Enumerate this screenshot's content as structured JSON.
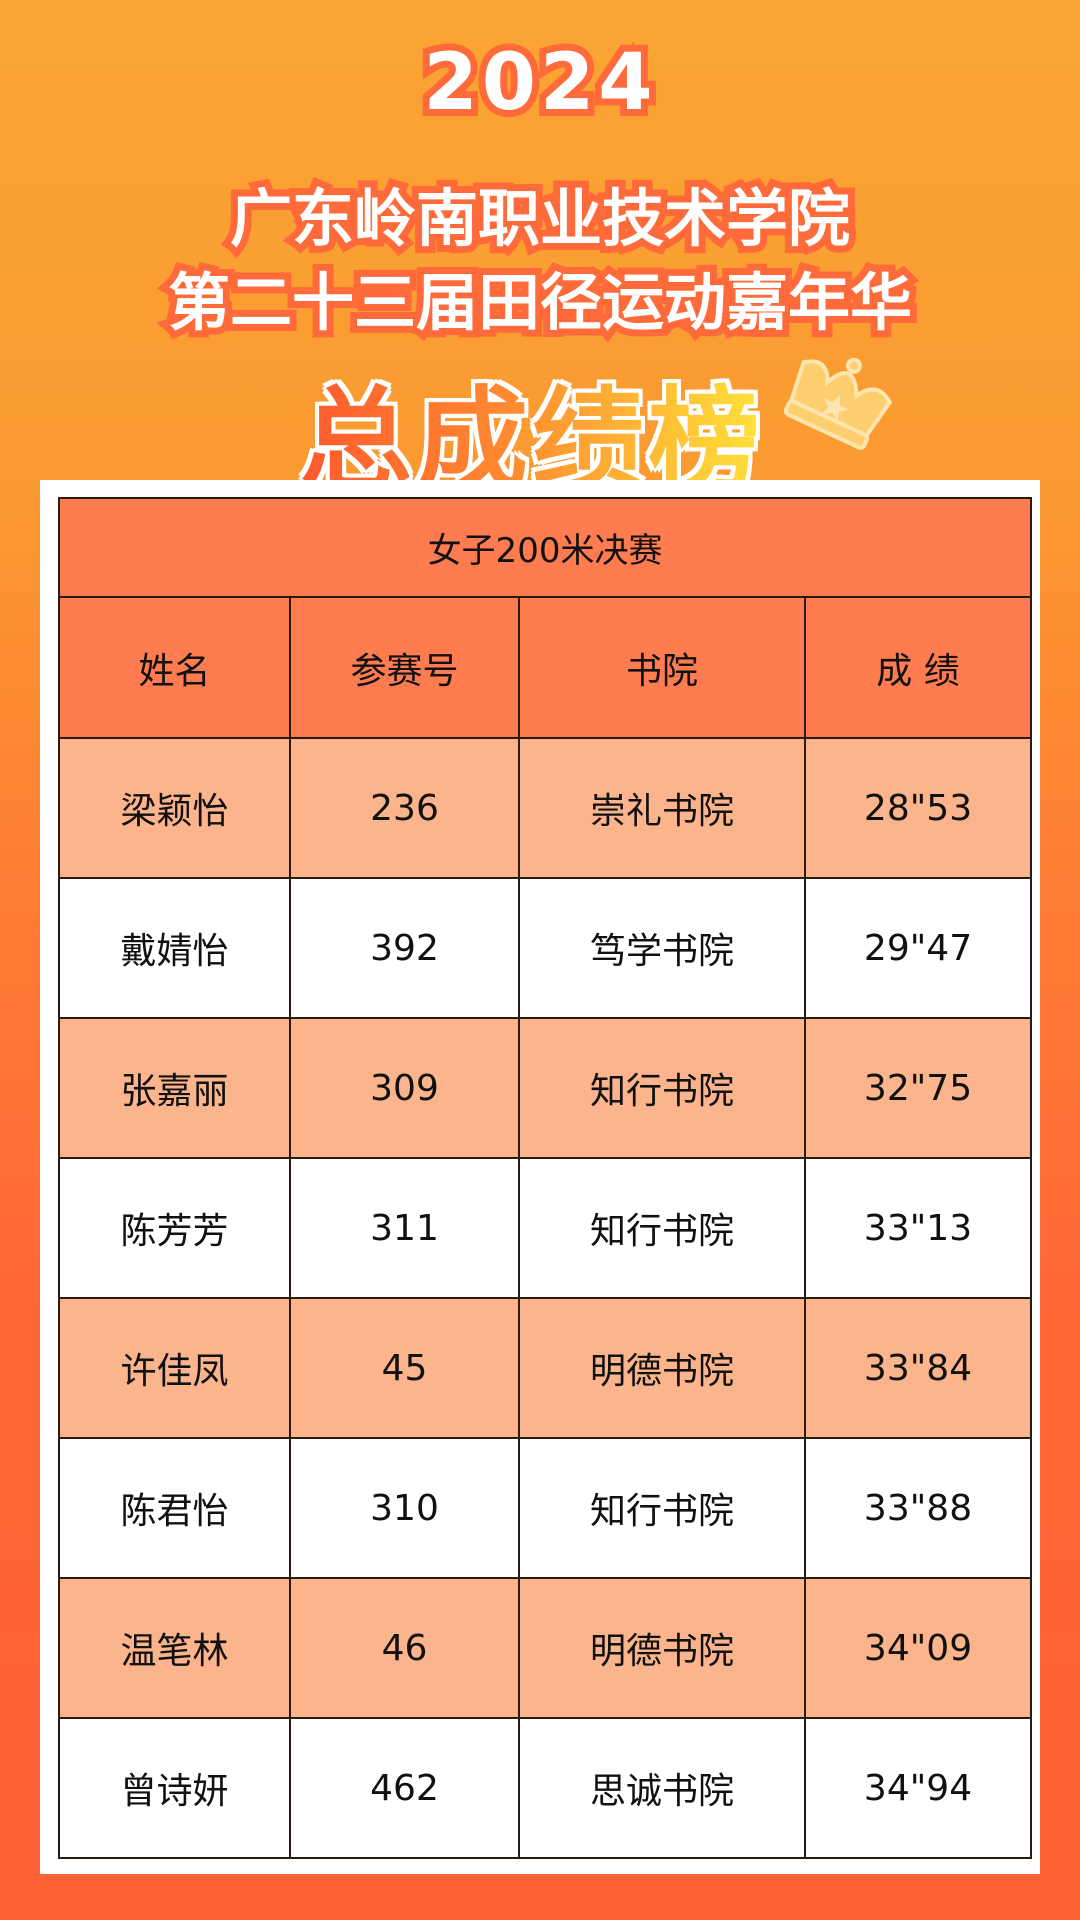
{
  "header": {
    "year": "2024",
    "line1": "广东岭南职业技术学院",
    "line2": "第二十三届田径运动嘉年华",
    "banner": "总成绩榜",
    "banner_icon": "crown-icon"
  },
  "table": {
    "title": "女子200米决赛",
    "columns": [
      "姓名",
      "参赛号",
      "书院",
      "成 绩"
    ],
    "rows": [
      [
        "梁颖怡",
        "236",
        "崇礼书院",
        "28\"53"
      ],
      [
        "戴婧怡",
        "392",
        "笃学书院",
        "29\"47"
      ],
      [
        "张嘉丽",
        "309",
        "知行书院",
        "32\"75"
      ],
      [
        "陈芳芳",
        "311",
        "知行书院",
        "33\"13"
      ],
      [
        "许佳凤",
        "45",
        "明德书院",
        "33\"84"
      ],
      [
        "陈君怡",
        "310",
        "知行书院",
        "33\"88"
      ],
      [
        "温笔林",
        "46",
        "明德书院",
        "34\"09"
      ],
      [
        "曾诗妍",
        "462",
        "思诚书院",
        "34\"94"
      ]
    ]
  },
  "colors": {
    "header_row": "#ff7b50",
    "alt_row": "#fbb48b",
    "background_top": "#f9a533",
    "background_bottom": "#ff6136"
  }
}
